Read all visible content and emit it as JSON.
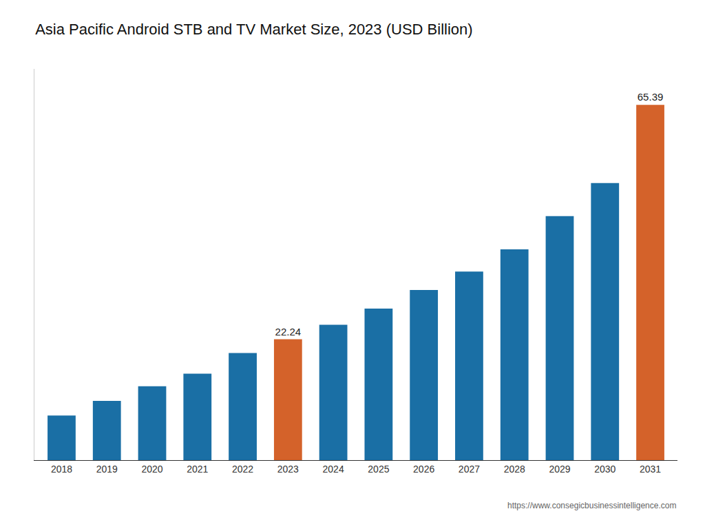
{
  "chart_data": {
    "type": "bar",
    "title": "Asia Pacific Android STB and TV Market Size, 2023 (USD Billion)",
    "categories": [
      "2018",
      "2019",
      "2020",
      "2021",
      "2022",
      "2023",
      "2024",
      "2025",
      "2026",
      "2027",
      "2028",
      "2029",
      "2030",
      "2031"
    ],
    "values": [
      8.2,
      10.9,
      13.6,
      15.9,
      19.7,
      22.24,
      24.9,
      27.9,
      31.3,
      34.7,
      38.8,
      44.9,
      51.0,
      65.39
    ],
    "colors": [
      "#1a6fa5",
      "#1a6fa5",
      "#1a6fa5",
      "#1a6fa5",
      "#1a6fa5",
      "#d4622a",
      "#1a6fa5",
      "#1a6fa5",
      "#1a6fa5",
      "#1a6fa5",
      "#1a6fa5",
      "#1a6fa5",
      "#1a6fa5",
      "#d4622a"
    ],
    "data_labels": true,
    "value_labels": [
      null,
      null,
      null,
      null,
      null,
      "22.24",
      null,
      null,
      null,
      null,
      null,
      null,
      null,
      "65.39"
    ],
    "ylim": [
      0,
      72
    ],
    "tick_labels": "x",
    "grid": false,
    "annotations": [
      "https://www.consegicbusinessintelligence.com"
    ]
  }
}
